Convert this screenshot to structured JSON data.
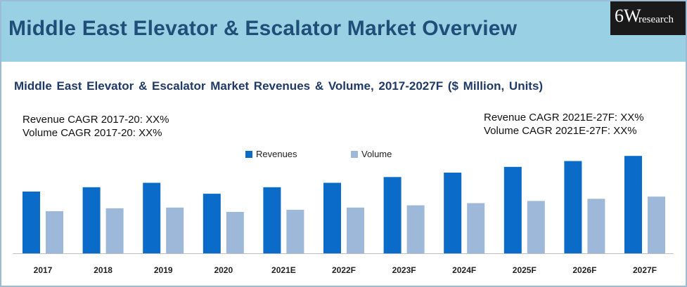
{
  "header": {
    "title": "Middle East Elevator & Escalator Market Overview",
    "logo_main": "6W",
    "logo_sub": "research"
  },
  "annotations": {
    "left_line1": "Revenue CAGR 2017-20: XX%",
    "left_line2": "Volume CAGR 2017-20: XX%",
    "right_line1": "Revenue CAGR 2021E-27F: XX%",
    "right_line2": "Volume CAGR 2021E-27F: XX%"
  },
  "colors": {
    "header_bg": "#9ad0e4",
    "title_color": "#1f4e79",
    "revenues": "#0a6bc8",
    "volume": "#9db8d9"
  },
  "chart_data": {
    "type": "bar",
    "title": "Middle East Elevator & Escalator Market Revenues & Volume, 2017-2027F ($ Million, Units)",
    "categories": [
      "2017",
      "2018",
      "2019",
      "2020",
      "2021E",
      "2022F",
      "2023F",
      "2024F",
      "2025F",
      "2026F",
      "2027F"
    ],
    "series": [
      {
        "name": "Revenues",
        "color": "#0a6bc8",
        "values": [
          85,
          91,
          97,
          82,
          91,
          97,
          105,
          111,
          119,
          127,
          134
        ]
      },
      {
        "name": "Volume",
        "color": "#9db8d9",
        "values": [
          58,
          62,
          63,
          57,
          60,
          63,
          66,
          69,
          72,
          75,
          78
        ]
      }
    ],
    "ylim": [
      0,
      140
    ],
    "grid": false,
    "legend": "top-center",
    "xlabel": "",
    "ylabel": ""
  }
}
